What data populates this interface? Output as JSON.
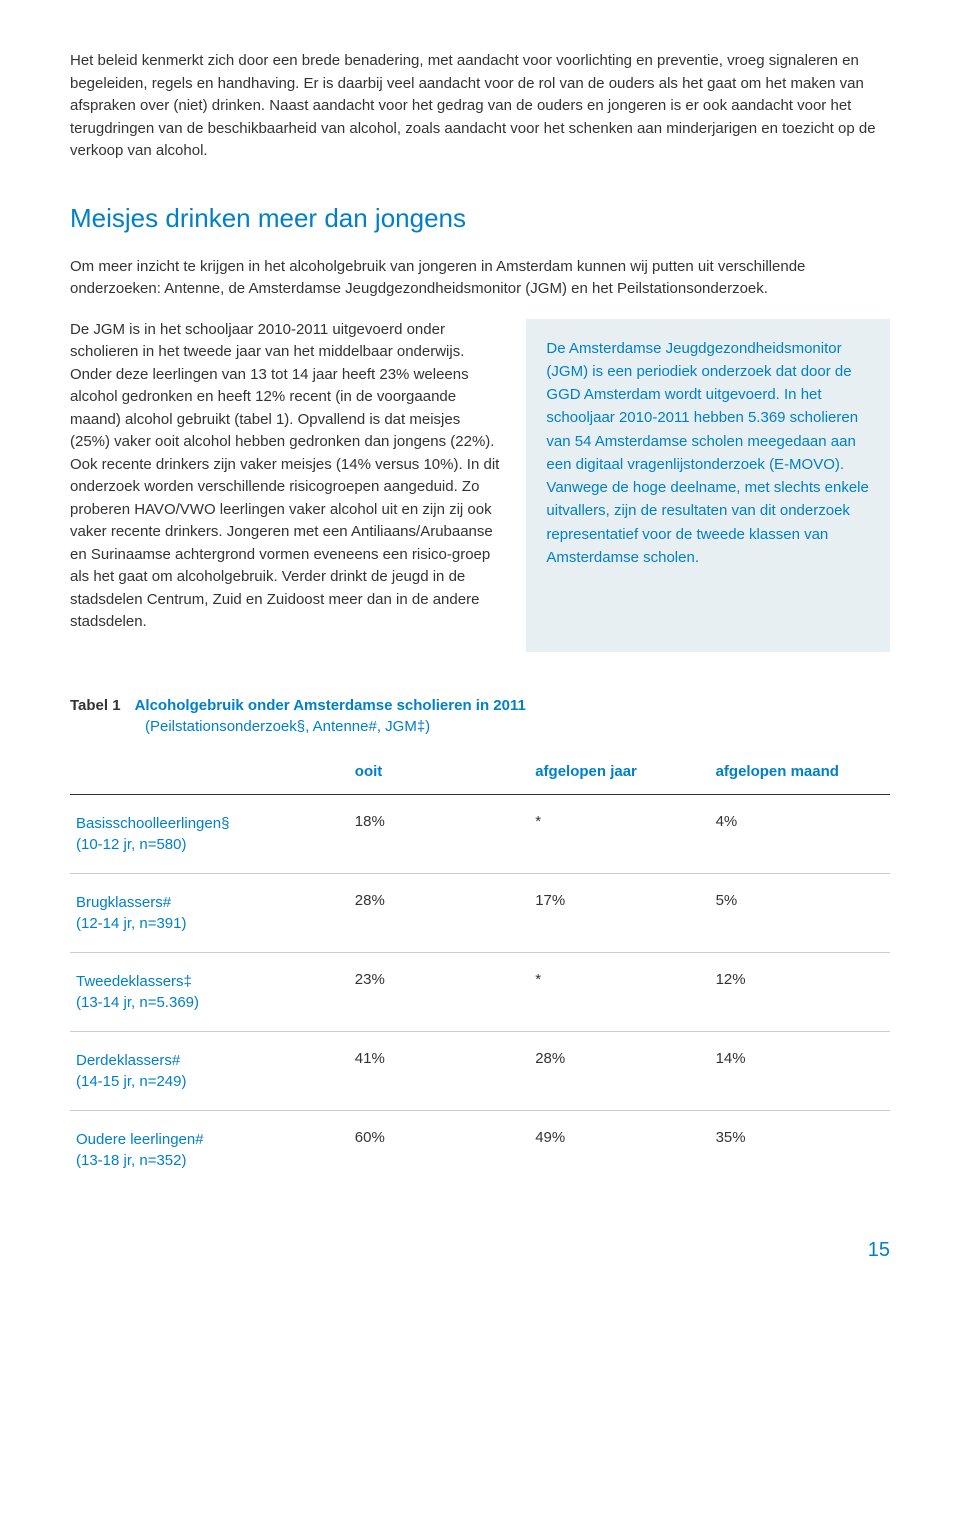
{
  "intro": "Het beleid kenmerkt zich door een brede benadering, met aandacht voor voorlichting en preventie, vroeg signaleren en begeleiden, regels en handhaving. Er is daarbij veel aandacht voor de rol van de ouders als het gaat om het maken van afspraken over (niet) drinken. Naast aandacht voor het gedrag van de ouders en jongeren is er ook aandacht voor het terugdringen van de beschikbaarheid van alcohol, zoals aandacht voor het schenken aan minderjarigen en toezicht op de verkoop van alcohol.",
  "heading": "Meisjes drinken meer dan jongens",
  "para1": "Om meer inzicht te krijgen in het alcoholgebruik van jongeren in Amsterdam kunnen wij putten uit verschillende onderzoeken: Antenne, de Amsterdamse Jeugdgezondheidsmonitor (JGM) en het Peilstationsonderzoek.",
  "para2": "De JGM is in het schooljaar 2010-2011 uitgevoerd onder scholieren in het tweede jaar van het middelbaar onderwijs. Onder deze leerlingen van 13 tot 14 jaar heeft 23% weleens alcohol gedronken en heeft 12% recent (in de voorgaande maand) alcohol gebruikt (tabel 1). Opvallend is dat meisjes (25%) vaker ooit alcohol hebben gedronken dan jongens (22%). Ook recente drinkers zijn vaker meisjes (14% versus 10%). In dit onderzoek worden verschillende risicogroepen aangeduid. Zo proberen HAVO/VWO leerlingen vaker alcohol uit en zijn zij ook vaker recente drinkers. Jongeren met een Antiliaans/Arubaanse en Surinaamse achtergrond vormen eveneens een risico-groep als het gaat om alcoholgebruik. Verder drinkt de jeugd in de stadsdelen Centrum, Zuid en Zuidoost meer dan in de andere stadsdelen.",
  "callout_lead": "De Amsterdamse Jeugdgezondheidsmonitor (JGM)",
  "callout_rest": " is een periodiek onderzoek dat door de GGD Amsterdam wordt uitgevoerd. In het schooljaar 2010-2011 hebben 5.369 scholieren van 54 Amsterdamse scholen meegedaan aan een digitaal vragenlijstonderzoek (E-MOVO). Vanwege de hoge deelname, met slechts enkele uitvallers, zijn de resultaten van dit onderzoek representatief voor de tweede klassen van Amsterdamse scholen.",
  "table": {
    "label": "Tabel 1",
    "title": "Alcoholgebruik onder Amsterdamse scholieren in 2011",
    "subtitle": "(Peilstationsonderzoek§, Antenne#, JGM‡)",
    "columns": [
      "",
      "ooit",
      "afgelopen jaar",
      "afgelopen maand"
    ],
    "rows": [
      {
        "label": "Basisschoolleerlingen§",
        "sub": "(10-12 jr, n=580)",
        "c1": "18%",
        "c2": "*",
        "c3": "4%"
      },
      {
        "label": "Brugklassers#",
        "sub": "(12-14 jr, n=391)",
        "c1": "28%",
        "c2": "17%",
        "c3": "5%"
      },
      {
        "label": "Tweedeklassers‡",
        "sub": "(13-14 jr, n=5.369)",
        "c1": "23%",
        "c2": "*",
        "c3": "12%"
      },
      {
        "label": "Derdeklassers#",
        "sub": "(14-15 jr, n=249)",
        "c1": "41%",
        "c2": "28%",
        "c3": "14%"
      },
      {
        "label": "Oudere leerlingen#",
        "sub": "(13-18 jr, n=352)",
        "c1": "60%",
        "c2": "49%",
        "c3": "35%"
      }
    ]
  },
  "page_number": "15",
  "colors": {
    "accent": "#0080c8",
    "text": "#333333",
    "callout_bg": "#e7eff3",
    "rule": "#cccccc"
  }
}
